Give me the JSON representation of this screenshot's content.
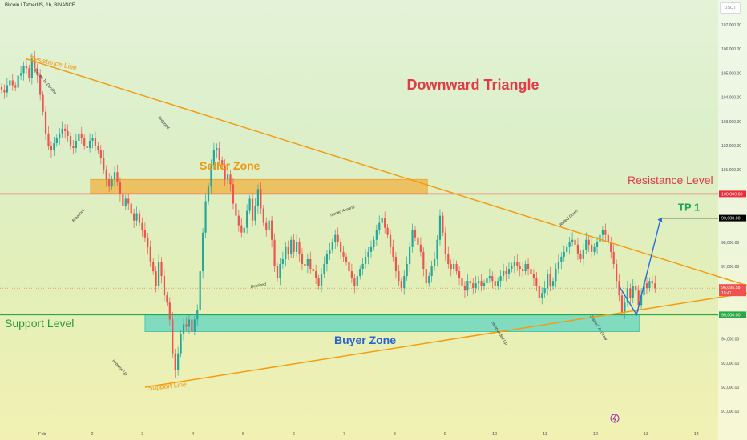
{
  "header": {
    "symbol": "Bitcoin / TetherUS, 1h, BINANCE",
    "currency": "USDT"
  },
  "chart_data": {
    "type": "candlestick",
    "title": "Downward Triangle",
    "x_ticks": [
      "Feb",
      "2",
      "3",
      "4",
      "5",
      "6",
      "7",
      "8",
      "9",
      "10",
      "11",
      "12",
      "13",
      "14"
    ],
    "y_ticks": [
      91000,
      92000,
      93000,
      94000,
      95000,
      96000,
      97000,
      98000,
      99000,
      100000,
      101000,
      102000,
      103000,
      104000,
      105000,
      106000,
      107000
    ],
    "price_labels": {
      "resistance": "100,000.00",
      "tp": "99,000.00",
      "current": "96,095.58",
      "countdown": "10:41",
      "support": "95,000.00"
    },
    "levels": [
      {
        "name": "Resistance Level",
        "price": 100000,
        "color": "#ef2b3a"
      },
      {
        "name": "Support Level",
        "price": 95000,
        "color": "#27a844"
      }
    ],
    "target": {
      "name": "TP 1",
      "price": 99000
    },
    "zones": [
      {
        "name": "Seller Zone",
        "from": 100000,
        "to": 100600
      },
      {
        "name": "Buyer Zone",
        "from": 94300,
        "to": 95000
      }
    ],
    "trendlines": [
      {
        "name": "Resistance Line",
        "from": [
          "Feb 1",
          105600
        ],
        "to": [
          "Feb 15",
          96200
        ]
      },
      {
        "name": "Support Line",
        "from": [
          "Feb 3",
          92000
        ],
        "to": [
          "Feb 15",
          95900
        ]
      }
    ],
    "annotations": [
      "Started To Decline",
      "Dropped",
      "Breakout",
      "Turned Around",
      "Declined",
      "Rolled Down",
      "Impulse Up",
      "Rebounded Up",
      "Started To Grow"
    ],
    "series": [
      {
        "values": [
          104300,
          104200,
          104500,
          104700,
          104500,
          104400,
          104900,
          105000,
          105300,
          105200,
          104800,
          105600,
          105200,
          104900,
          104100,
          103400,
          102500,
          102000,
          101800,
          102100,
          102300,
          102500,
          102700,
          102600,
          102400,
          102000,
          101900,
          102200,
          102500,
          102300,
          102000,
          101900,
          102200,
          102300,
          102000,
          101800,
          101500,
          101000,
          100600,
          100300,
          100600,
          100900,
          100500,
          100000,
          99500,
          99800,
          99600,
          99200,
          98900,
          99200,
          98800,
          98500,
          98200,
          97800,
          97200,
          96800,
          96200,
          97200,
          96600,
          95800,
          95500,
          94800,
          93400,
          92700,
          93400,
          94200,
          94600,
          94500,
          94800,
          94300,
          94800,
          95200,
          96800,
          98400,
          99700,
          100300,
          101200,
          101800,
          101900,
          101400,
          101200,
          100600,
          100800,
          100400,
          99600,
          99100,
          98700,
          98400,
          98600,
          99300,
          99800,
          98900,
          99500,
          100200,
          99400,
          98800,
          98500,
          98900,
          98100,
          97000,
          96500,
          97100,
          97300,
          97800,
          97500,
          98100,
          97600,
          98000,
          97500,
          97100,
          97000,
          97300,
          96900,
          96800,
          96500,
          96200,
          96700,
          97100,
          97500,
          97700,
          98000,
          98300,
          98000,
          97600,
          97400,
          97200,
          96800,
          96500,
          96200,
          96600,
          96900,
          97100,
          97400,
          97600,
          97800,
          98100,
          98500,
          98800,
          99000,
          98600,
          98300,
          97800,
          97400,
          96800,
          96400,
          96100,
          96600,
          97100,
          97800,
          98500,
          98200,
          97900,
          97600,
          96900,
          96300,
          96600,
          97000,
          97300,
          98100,
          99100,
          98400,
          97500,
          97100,
          96900,
          97100,
          96800,
          96500,
          96200,
          96000,
          96400,
          96300,
          96100,
          96300,
          96400,
          96200,
          96300,
          96500,
          96600,
          96400,
          96200,
          96400,
          96600,
          96800,
          96700,
          96900,
          97000,
          97200,
          97000,
          96900,
          96800,
          97100,
          96900,
          96700,
          96500,
          96200,
          95700,
          95900,
          96100,
          96700,
          96200,
          96400,
          96900,
          97200,
          97400,
          97600,
          97800,
          98000,
          98100,
          97900,
          97500,
          97300,
          97700,
          98100,
          97900,
          97600,
          97800,
          98000,
          98300,
          98500,
          98300,
          98000,
          97600,
          97100,
          96400,
          95800,
          95100,
          95500,
          96100,
          95700,
          96200,
          96000,
          95400,
          95800,
          96300,
          96100,
          96400,
          96300,
          96100
        ]
      }
    ]
  }
}
